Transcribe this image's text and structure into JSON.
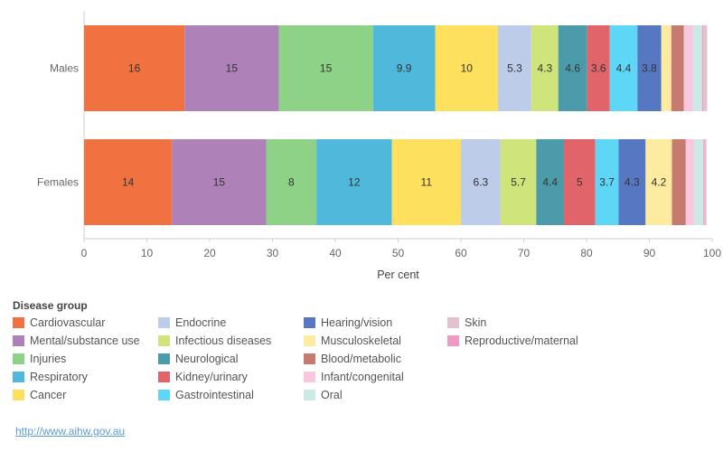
{
  "chart_data": {
    "type": "bar",
    "orientation": "horizontal",
    "stacked": true,
    "categories": [
      "Males",
      "Females"
    ],
    "series": [
      {
        "name": "Cardiovascular",
        "values": [
          16,
          14
        ],
        "color": "#f07241"
      },
      {
        "name": "Mental/substance use",
        "values": [
          15,
          15
        ],
        "color": "#ae82b8"
      },
      {
        "name": "Injuries",
        "values": [
          15,
          8
        ],
        "color": "#8dd286"
      },
      {
        "name": "Respiratory",
        "values": [
          9.9,
          12
        ],
        "color": "#4fb8db"
      },
      {
        "name": "Cancer",
        "values": [
          10,
          11
        ],
        "color": "#fde05d"
      },
      {
        "name": "Endocrine",
        "values": [
          5.3,
          6.3
        ],
        "color": "#bccce9"
      },
      {
        "name": "Infectious diseases",
        "values": [
          4.3,
          5.7
        ],
        "color": "#cfe47a"
      },
      {
        "name": "Neurological",
        "values": [
          4.6,
          4.4
        ],
        "color": "#4c9bab"
      },
      {
        "name": "Kidney/urinary",
        "values": [
          3.6,
          5
        ],
        "color": "#e2646b"
      },
      {
        "name": "Gastrointestinal",
        "values": [
          4.4,
          3.7
        ],
        "color": "#5ed6f6"
      },
      {
        "name": "Hearing/vision",
        "values": [
          3.8,
          4.3
        ],
        "color": "#5677c2"
      },
      {
        "name": "Musculoskeletal",
        "values": [
          1.6,
          4.2
        ],
        "color": "#fdeba0"
      },
      {
        "name": "Blood/metabolic",
        "values": [
          2,
          2.2
        ],
        "color": "#c77a6f"
      },
      {
        "name": "Infant/congenital",
        "values": [
          1.4,
          1.3
        ],
        "color": "#f8c6df"
      },
      {
        "name": "Oral",
        "values": [
          1.5,
          1.5
        ],
        "color": "#cde9e5"
      },
      {
        "name": "Reproductive/maternal",
        "values": [
          0.2,
          0.2
        ],
        "color": "#ef9ac3"
      },
      {
        "name": "Skin",
        "values": [
          0.6,
          0.3
        ],
        "color": "#e2c2d1"
      }
    ],
    "data_labels": {
      "Males": [
        "16",
        "15",
        "15",
        "9.9",
        "10",
        "5.3",
        "4.3",
        "4.6",
        "3.6",
        "4.4",
        "3.8"
      ],
      "Females": [
        "14",
        "15",
        "8",
        "12",
        "11",
        "6.3",
        "5.7",
        "4.4",
        "5",
        "3.7",
        "4.3",
        "4.2"
      ]
    },
    "xlabel": "Per cent",
    "xlim": [
      0,
      100
    ],
    "xticks": [
      0,
      10,
      20,
      30,
      40,
      50,
      60,
      70,
      80,
      90,
      100
    ],
    "grid": false
  },
  "legend": {
    "title": "Disease group",
    "items": [
      {
        "label": "Cardiovascular",
        "color": "#f07241"
      },
      {
        "label": "Mental/substance use",
        "color": "#ae82b8"
      },
      {
        "label": "Injuries",
        "color": "#8dd286"
      },
      {
        "label": "Respiratory",
        "color": "#4fb8db"
      },
      {
        "label": "Cancer",
        "color": "#fde05d"
      },
      {
        "label": "Endocrine",
        "color": "#bccce9"
      },
      {
        "label": "Infectious diseases",
        "color": "#cfe47a"
      },
      {
        "label": "Neurological",
        "color": "#4c9bab"
      },
      {
        "label": "Kidney/urinary",
        "color": "#e2646b"
      },
      {
        "label": "Gastrointestinal",
        "color": "#5ed6f6"
      },
      {
        "label": "Hearing/vision",
        "color": "#5677c2"
      },
      {
        "label": "Musculoskeletal",
        "color": "#fdeba0"
      },
      {
        "label": "Blood/metabolic",
        "color": "#c77a6f"
      },
      {
        "label": "Infant/congenital",
        "color": "#f8c6df"
      },
      {
        "label": "Oral",
        "color": "#cde9e5"
      },
      {
        "label": "Skin",
        "color": "#e2c2d1"
      },
      {
        "label": "Reproductive/maternal",
        "color": "#ef9ac3"
      }
    ]
  },
  "source": {
    "link_text": "http://www.aihw.gov.au"
  }
}
